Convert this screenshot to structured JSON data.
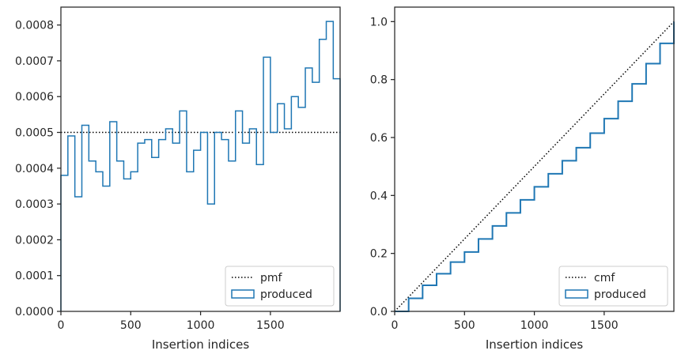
{
  "chart_data": [
    {
      "type": "histogram",
      "title": "",
      "xlabel": "Insertion indices",
      "ylabel": "",
      "xlim": [
        0,
        1999
      ],
      "ylim": [
        0,
        0.00085
      ],
      "x_ticks": [
        0,
        500,
        1000,
        1500
      ],
      "y_ticks": [
        0,
        0.0001,
        0.0002,
        0.0003,
        0.0004,
        0.0005,
        0.0006,
        0.0007,
        0.0008
      ],
      "x_tick_labels": [
        "0",
        "500",
        "1000",
        "1500"
      ],
      "y_tick_labels": [
        "0.0000",
        "0.0001",
        "0.0002",
        "0.0003",
        "0.0004",
        "0.0005",
        "0.0006",
        "0.0007",
        "0.0008"
      ],
      "grid": false,
      "legend_position": "lower right",
      "reference": {
        "name": "pmf",
        "style": "dotted",
        "color": "#000000",
        "y": 0.0005
      },
      "series": [
        {
          "name": "produced",
          "style": "step",
          "color": "#1f77b4",
          "bin_edges": [
            0,
            50,
            100,
            150,
            200,
            250,
            300,
            350,
            400,
            450,
            500,
            550,
            600,
            650,
            700,
            750,
            800,
            850,
            900,
            950,
            1000,
            1050,
            1100,
            1150,
            1200,
            1250,
            1300,
            1350,
            1400,
            1450,
            1500,
            1550,
            1600,
            1650,
            1700,
            1750,
            1800,
            1850,
            1900,
            1950,
            1999
          ],
          "values": [
            0.00038,
            0.00049,
            0.00032,
            0.00052,
            0.00042,
            0.00039,
            0.00035,
            0.00053,
            0.00042,
            0.00037,
            0.00039,
            0.00047,
            0.00048,
            0.00043,
            0.00048,
            0.00051,
            0.00047,
            0.00056,
            0.00039,
            0.00045,
            0.0005,
            0.0003,
            0.0005,
            0.00048,
            0.00042,
            0.00056,
            0.00047,
            0.00051,
            0.00041,
            0.00071,
            0.0005,
            0.00058,
            0.00051,
            0.0006,
            0.00057,
            0.00068,
            0.00064,
            0.00076,
            0.00081,
            0.00065
          ]
        }
      ]
    },
    {
      "type": "line",
      "title": "",
      "xlabel": "Insertion indices",
      "ylabel": "",
      "xlim": [
        0,
        1999
      ],
      "ylim": [
        0,
        1.05
      ],
      "x_ticks": [
        0,
        500,
        1000,
        1500
      ],
      "y_ticks": [
        0,
        0.2,
        0.4,
        0.6,
        0.8,
        1.0
      ],
      "x_tick_labels": [
        "0",
        "500",
        "1000",
        "1500"
      ],
      "y_tick_labels": [
        "0.0",
        "0.2",
        "0.4",
        "0.6",
        "0.8",
        "1.0"
      ],
      "grid": false,
      "legend_position": "lower right",
      "reference": {
        "name": "cmf",
        "style": "dotted",
        "color": "#000000",
        "x": [
          0,
          1999
        ],
        "y": [
          0,
          1.0
        ]
      },
      "series": [
        {
          "name": "produced",
          "style": "step",
          "color": "#1f77b4",
          "x": [
            0,
            100,
            200,
            300,
            400,
            500,
            600,
            700,
            800,
            900,
            1000,
            1100,
            1200,
            1300,
            1400,
            1500,
            1600,
            1700,
            1800,
            1900,
            1999
          ],
          "y": [
            0,
            0.045,
            0.09,
            0.13,
            0.17,
            0.205,
            0.25,
            0.295,
            0.34,
            0.385,
            0.43,
            0.475,
            0.52,
            0.565,
            0.615,
            0.665,
            0.725,
            0.785,
            0.855,
            0.925,
            1.0
          ]
        }
      ]
    }
  ]
}
